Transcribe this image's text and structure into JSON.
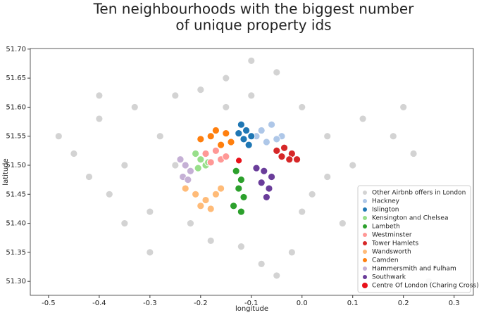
{
  "chart_data": {
    "type": "scatter",
    "title": [
      "Ten neighbourhoods with the biggest number",
      "of unique property ids"
    ],
    "x_label": "longitude",
    "y_label": "latitude",
    "xlim": [
      -0.536,
      0.338
    ],
    "ylim": [
      51.276,
      51.701
    ],
    "xticks": [
      -0.5,
      -0.4,
      -0.3,
      -0.2,
      -0.1,
      {
        "value": 0,
        "label": "0.0"
      },
      0.1,
      0.2,
      0.3
    ],
    "yticks": [
      {
        "value": 51.3,
        "label": "51.30"
      },
      51.35,
      {
        "value": 51.4,
        "label": "51.40"
      },
      51.45,
      {
        "value": 51.5,
        "label": "51.50"
      },
      51.55,
      {
        "value": 51.6,
        "label": "51.60"
      },
      51.65,
      {
        "value": 51.7,
        "label": "51.70"
      }
    ],
    "legend": "lower right",
    "series": [
      {
        "name": "Other Airbnb offers in London",
        "color": "#d3d3d3",
        "x": [
          -0.48,
          -0.45,
          -0.42,
          -0.4,
          -0.38,
          -0.35,
          -0.33,
          -0.3,
          -0.28,
          -0.25,
          -0.22,
          -0.2,
          -0.18,
          -0.15,
          -0.12,
          -0.1,
          -0.08,
          -0.05,
          -0.02,
          0.0,
          0.02,
          0.05,
          0.08,
          0.1,
          0.12,
          0.15,
          0.18,
          0.2,
          -0.3,
          -0.25,
          -0.2,
          -0.1,
          0.0,
          0.05,
          -0.35,
          -0.15,
          0.22,
          0.25,
          -0.05,
          -0.4
        ],
        "y": [
          51.55,
          51.52,
          51.48,
          51.58,
          51.45,
          51.5,
          51.6,
          51.42,
          51.55,
          51.62,
          51.4,
          51.63,
          51.37,
          51.65,
          51.36,
          51.68,
          51.33,
          51.66,
          51.35,
          51.6,
          51.45,
          51.55,
          51.4,
          51.5,
          51.58,
          51.45,
          51.55,
          51.6,
          51.35,
          51.5,
          51.43,
          51.62,
          51.42,
          51.48,
          51.4,
          51.6,
          51.52,
          51.3,
          51.31,
          51.62
        ]
      },
      {
        "name": "Hackney",
        "color": "#aec7e8",
        "x": [
          -0.08,
          -0.06,
          -0.04,
          -0.07,
          -0.05,
          -0.09
        ],
        "y": [
          51.56,
          51.57,
          51.55,
          51.54,
          51.545,
          51.55
        ]
      },
      {
        "name": "Islington",
        "color": "#1f77b4",
        "x": [
          -0.12,
          -0.11,
          -0.1,
          -0.115,
          -0.105,
          -0.125
        ],
        "y": [
          51.57,
          51.56,
          51.55,
          51.545,
          51.535,
          51.555
        ]
      },
      {
        "name": "Kensington and Chelsea",
        "color": "#98df8a",
        "x": [
          -0.21,
          -0.2,
          -0.19,
          -0.205,
          -0.185
        ],
        "y": [
          51.52,
          51.51,
          51.5,
          51.495,
          51.505
        ]
      },
      {
        "name": "Lambeth",
        "color": "#2ca02c",
        "x": [
          -0.13,
          -0.12,
          -0.125,
          -0.115,
          -0.135,
          -0.12
        ],
        "y": [
          51.49,
          51.475,
          51.46,
          51.445,
          51.43,
          51.42
        ]
      },
      {
        "name": "Westminster",
        "color": "#ff9896",
        "x": [
          -0.19,
          -0.17,
          -0.16,
          -0.18,
          -0.15
        ],
        "y": [
          51.52,
          51.525,
          51.51,
          51.505,
          51.515
        ]
      },
      {
        "name": "Tower Hamlets",
        "color": "#d62728",
        "x": [
          -0.05,
          -0.035,
          -0.02,
          -0.04,
          -0.025,
          -0.01
        ],
        "y": [
          51.525,
          51.53,
          51.52,
          51.515,
          51.51,
          51.51
        ]
      },
      {
        "name": "Wandsworth",
        "color": "#ffbb78",
        "x": [
          -0.23,
          -0.21,
          -0.19,
          -0.17,
          -0.2,
          -0.18,
          -0.16
        ],
        "y": [
          51.46,
          51.45,
          51.44,
          51.45,
          51.43,
          51.425,
          51.46
        ]
      },
      {
        "name": "Camden",
        "color": "#ff7f0e",
        "x": [
          -0.2,
          -0.18,
          -0.17,
          -0.15,
          -0.14,
          -0.16
        ],
        "y": [
          51.545,
          51.55,
          51.56,
          51.555,
          51.54,
          51.535
        ]
      },
      {
        "name": "Hammersmith and Fulham",
        "color": "#c5b0d5",
        "x": [
          -0.24,
          -0.23,
          -0.22,
          -0.235,
          -0.225
        ],
        "y": [
          51.51,
          51.5,
          51.49,
          51.48,
          51.475
        ]
      },
      {
        "name": "Southwark",
        "color": "#6a3d9a",
        "x": [
          -0.09,
          -0.075,
          -0.06,
          -0.08,
          -0.065,
          -0.07
        ],
        "y": [
          51.495,
          51.49,
          51.48,
          51.47,
          51.46,
          51.445
        ]
      }
    ],
    "highlight": {
      "name": "Centre Of London (Charing Cross)",
      "color": "#e8111a",
      "x": [
        -0.1246
      ],
      "y": [
        51.508
      ]
    }
  }
}
